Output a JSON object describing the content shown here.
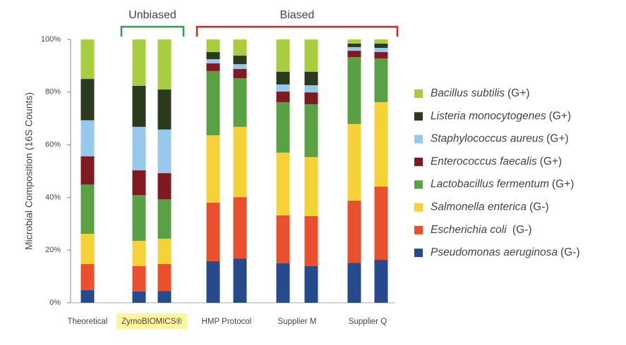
{
  "chart_data": {
    "type": "stacked_bar",
    "y_label": "Microbial Composition (16S Counts)",
    "categories": [
      "Theoretical",
      "ZymoBIOMICS®",
      null,
      "HMP Protocol",
      null,
      "Supplier M",
      null,
      "Supplier Q",
      null
    ],
    "highlight_index": 1,
    "highlight_color": "#fff59d",
    "annotations": [
      {
        "text": "Unbiased",
        "color": "#2e9e4f"
      },
      {
        "text": "Biased",
        "color": "#c62828"
      }
    ],
    "ylim": [
      0,
      100
    ],
    "yticks": [
      {
        "value": 0,
        "label": "0%"
      },
      {
        "value": 20,
        "label": "20%"
      },
      {
        "value": 40,
        "label": "40%"
      },
      {
        "value": 60,
        "label": "60%"
      },
      {
        "value": 80,
        "label": "80%"
      },
      {
        "value": 100,
        "label": "100%"
      }
    ],
    "series": [
      {
        "name": "Pseudomonas aeruginosa",
        "gram": "(G-)",
        "color": "#264a8c",
        "values": [
          4.8,
          4.3,
          4.5,
          15.8,
          16.8,
          15.0,
          13.9,
          15.2,
          16.3
        ]
      },
      {
        "name": "Escherichia coli",
        "gram": " (G-)",
        "color": "#e8502e",
        "values": [
          9.9,
          9.6,
          10.2,
          22.2,
          23.3,
          18.2,
          19.0,
          23.6,
          27.8
        ]
      },
      {
        "name": "Salmonella enterica",
        "gram": "(G-)",
        "color": "#f5d237",
        "values": [
          11.5,
          9.6,
          9.6,
          25.6,
          26.7,
          23.8,
          22.4,
          29.1,
          32.1
        ]
      },
      {
        "name": "Lactobacillus fermentum",
        "gram": "(G+)",
        "color": "#5aa045",
        "values": [
          18.7,
          17.4,
          15.0,
          24.4,
          18.5,
          19.2,
          20.1,
          25.4,
          16.6
        ]
      },
      {
        "name": "Enterococcus faecalis",
        "gram": "(G+)",
        "color": "#7f1a22",
        "values": [
          10.7,
          9.4,
          9.9,
          2.9,
          3.5,
          4.0,
          4.5,
          2.4,
          2.4
        ]
      },
      {
        "name": "Staphylococcus aureus",
        "gram": "(G+)",
        "color": "#96c9ec",
        "values": [
          13.7,
          16.5,
          16.6,
          1.6,
          1.8,
          2.7,
          2.7,
          1.4,
          1.6
        ]
      },
      {
        "name": "Listeria monocytogenes",
        "gram": "(G+)",
        "color": "#2b3a1e",
        "values": [
          15.7,
          15.6,
          15.2,
          2.7,
          3.3,
          4.8,
          5.1,
          1.3,
          1.6
        ]
      },
      {
        "name": "Bacillus subtilis",
        "gram": "(G+)",
        "color": "#a8cd3e",
        "values": [
          15.0,
          17.6,
          19.0,
          4.8,
          6.1,
          12.3,
          12.3,
          1.6,
          1.6
        ]
      }
    ]
  }
}
